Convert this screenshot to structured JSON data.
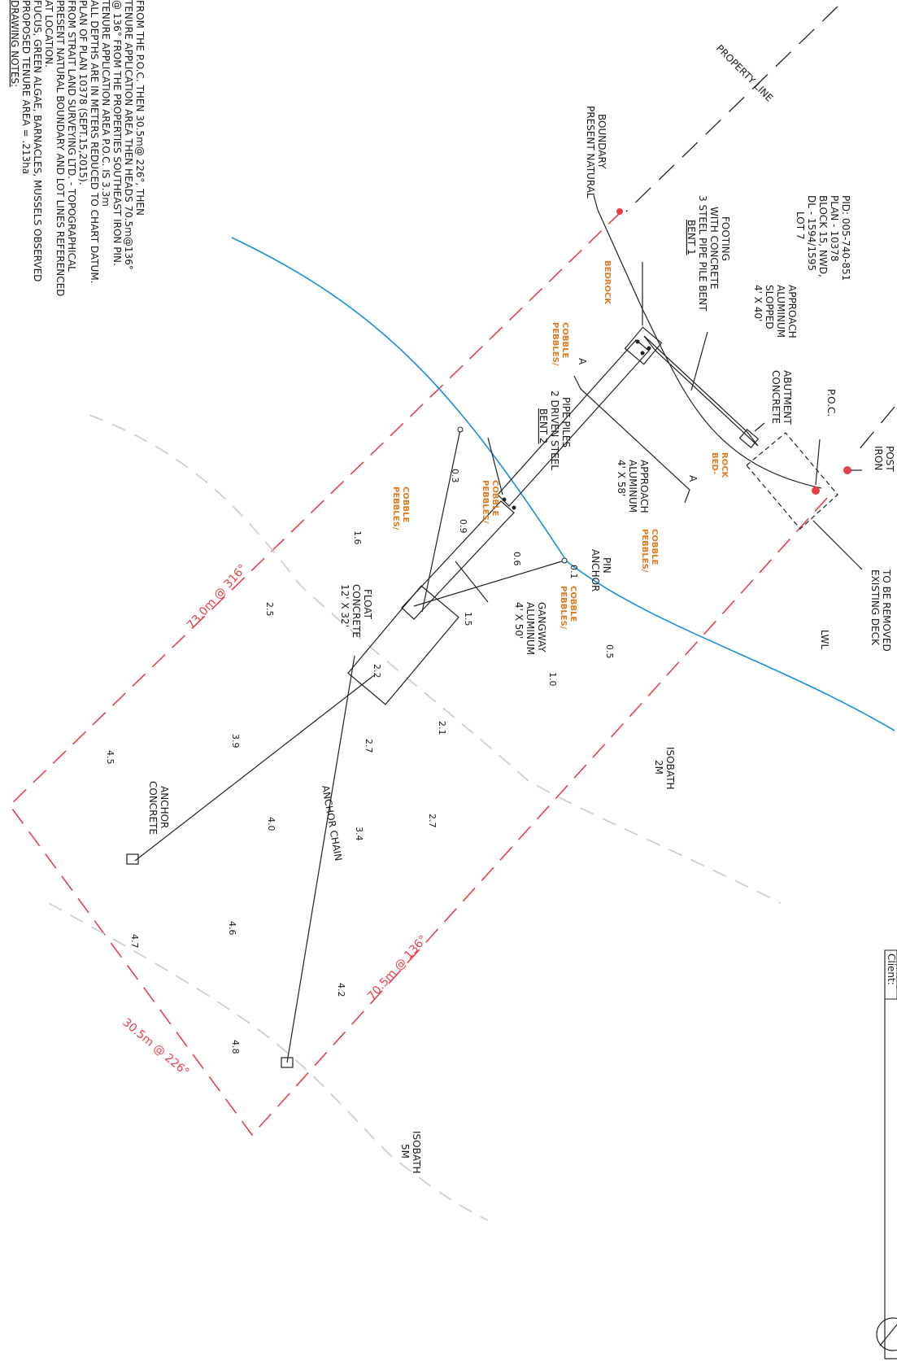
{
  "notes": {
    "title": "DRAWING NOTES:",
    "lines": [
      "PROPOSED TENURE AREA = .213ha",
      "FUCUS, GREEN ALGAE, BARNACLES, MUSSELS OBSERVED",
      "AT LOCATION.",
      "PRESENT NATURAL BOUNDARY AND LOT LINES REFERENCED",
      "FROM STRAIT LAND SURVEYING LTD. - TOPOGRAPHICAL",
      "PLAN OF PLAN 10378 (SEPT.15,2015).",
      "ALL DEPTHS ARE IN METERS REDUCED TO CHART DATUM.",
      "TENURE APPLICATION AREA P.O.C. IS 3.3m",
      "@ 136° FROM THE PROPERTIES SOUTHEAST IRON PIN.",
      "TENURE APPLICATION AREA THEN HEADS 70.5m@136°",
      "FROM THE P.O.C. THEN 30.5m@ 226°, THEN"
    ]
  },
  "labels": {
    "property_line": "PROPERTY LINE",
    "present_natural_boundary": [
      "PRESENT NATURAL",
      "BOUNDARY"
    ],
    "lot": [
      "LOT 7",
      "DL - 1594/1595",
      "BLOCK 15, NWD,",
      "PLAN - 10378",
      "PID: 005-740-851"
    ],
    "bent1": [
      "BENT 1",
      "3 STEEL PIPE PILE BENT",
      "WITH CONCRETE",
      "FOOTING"
    ],
    "sloped_approach": [
      "4' X 40'",
      "SLOPPED",
      "ALUMINUM",
      "APPROACH"
    ],
    "concrete_abutment": [
      "CONCRETE",
      "ABUTMENT"
    ],
    "poc": "P.O.C.",
    "iron_post": [
      "IRON",
      "POST"
    ],
    "existing_deck": [
      "EXISTING DECK",
      "TO BE REMOVED"
    ],
    "bent2": [
      "BENT 2",
      "2 DRIVEN STEEL",
      "PIPE PILES"
    ],
    "approach58": [
      "4' X 58'",
      "ALUMINUM",
      "APPROACH"
    ],
    "anchor_pin": [
      "ANCHOR",
      "PIN"
    ],
    "gangway": [
      "4' X 50'",
      "ALUMINUM",
      "GANGWAY"
    ],
    "float": [
      "12' X 32'",
      "CONCRETE",
      "FLOAT"
    ],
    "lwl": "LWL",
    "isobath_2m": [
      "2M",
      "ISOBATH"
    ],
    "isobath_5m": [
      "5M",
      "ISOBATH"
    ],
    "concrete_anchor": [
      "CONCRETE",
      "ANCHOR"
    ],
    "anchor_chain": "ANCHOR CHAIN",
    "section_a": "A",
    "client": "Client:"
  },
  "seabed": {
    "bedrock": "BEDROCK",
    "bedrock_split": [
      "BED-",
      "ROCK"
    ],
    "pebbles": [
      "PEBBLES/",
      "COBBLE"
    ]
  },
  "bearings": {
    "b316": "73.0m @ 316°",
    "b136": "70.5m @ 136°",
    "b226": "30.5m @ 226°"
  },
  "depths": [
    "0.3",
    "0.9",
    "1.6",
    "0.6",
    "0.1",
    "0.5",
    "1.5",
    "1.0",
    "2.5",
    "2.2",
    "2.1",
    "2.7",
    "3.9",
    "4.5",
    "2.7",
    "3.4",
    "4.0",
    "4.7",
    "4.6",
    "4.2",
    "4.8"
  ],
  "colors": {
    "tenure": "#e8404a",
    "waterline": "#1a8ee0",
    "seabed_label": "#e07a1e",
    "isobath": "#cfcfcf"
  }
}
